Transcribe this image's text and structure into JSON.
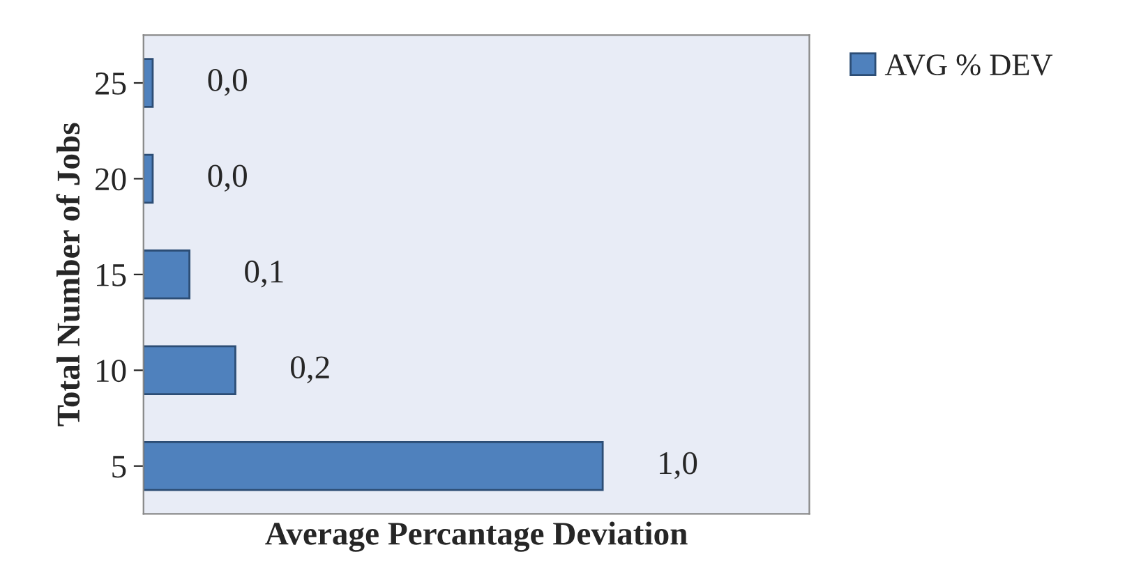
{
  "chart_data": {
    "type": "bar",
    "orientation": "horizontal",
    "xlabel": "Average Percantage Deviation",
    "ylabel": "Total Number of Jobs",
    "categories": [
      "25",
      "20",
      "15",
      "10",
      "5"
    ],
    "series": [
      {
        "name": "AVG % DEV",
        "color": "#4f81bd",
        "values": [
          0.02,
          0.02,
          0.1,
          0.2,
          1.0
        ],
        "value_labels": [
          "0,0",
          "0,0",
          "0,1",
          "0,2",
          "1,0"
        ]
      }
    ],
    "legend": "top right"
  }
}
